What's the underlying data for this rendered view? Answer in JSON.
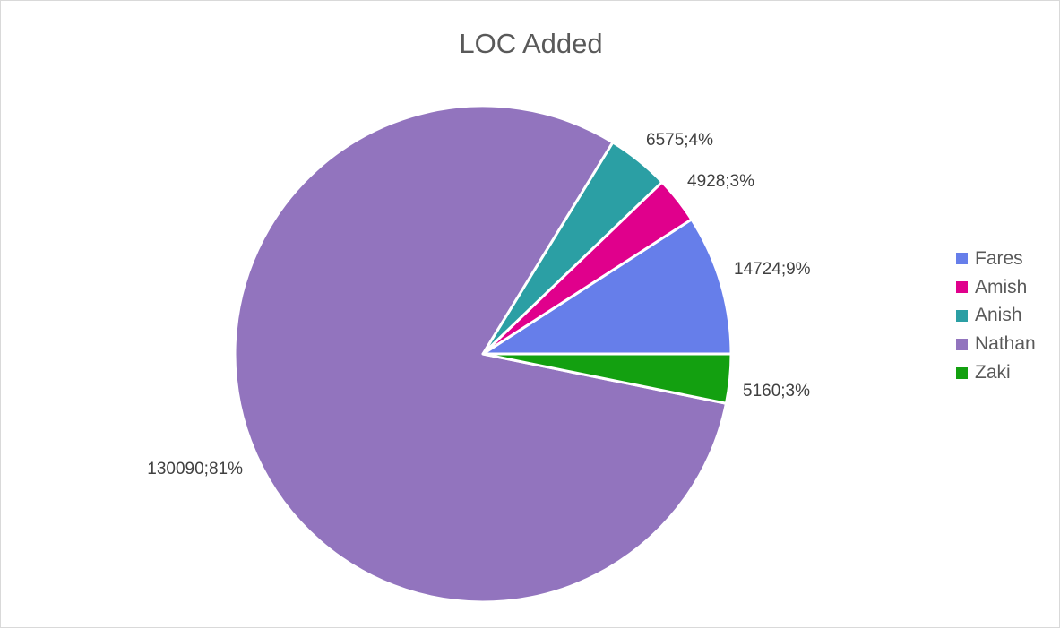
{
  "chart": {
    "title": "LOC Added"
  },
  "legend": {
    "items": [
      {
        "label": "Fares",
        "color": "#667eea"
      },
      {
        "label": "Amish",
        "color": "#e0008c"
      },
      {
        "label": "Anish",
        "color": "#2b9fa4"
      },
      {
        "label": "Nathan",
        "color": "#9274be"
      },
      {
        "label": "Zaki",
        "color": "#13a010"
      }
    ]
  },
  "chart_data": {
    "type": "pie",
    "title": "LOC Added",
    "categories": [
      "Fares",
      "Amish",
      "Anish",
      "Nathan",
      "Zaki"
    ],
    "values": [
      14724,
      4928,
      6575,
      130090,
      5160
    ],
    "percentages": [
      9,
      3,
      4,
      81,
      3
    ],
    "data_labels": [
      "14724;9%",
      "4928;3%",
      "6575;4%",
      "130090;81%",
      "5160;3%"
    ],
    "colors": [
      "#667eea",
      "#e0008c",
      "#2b9fa4",
      "#9274be",
      "#13a010"
    ],
    "legend_position": "right",
    "start_angle": "3 o'clock, counter-clockwise"
  }
}
